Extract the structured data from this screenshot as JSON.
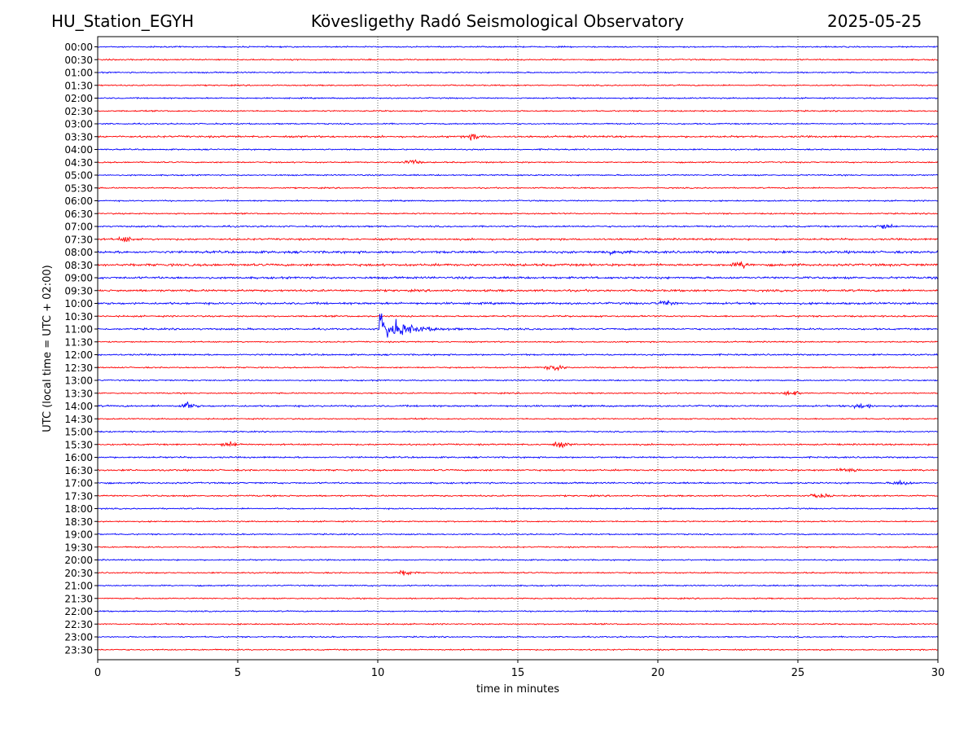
{
  "header": {
    "station": "HU_Station_EGYH",
    "observatory": "Kövesligethy Radó Seismological Observatory",
    "date": "2025-05-25"
  },
  "chart_data": {
    "type": "line",
    "title": "Kövesligethy Radó Seismological Observatory",
    "xlabel": "time in minutes",
    "ylabel": "UTC (local time = UTC + 02:00)",
    "xlim": [
      0,
      30
    ],
    "xticks": [
      0,
      5,
      10,
      15,
      20,
      25,
      30
    ],
    "grid": "vertical dotted lines at x ticks",
    "row_labels": [
      "00:00",
      "00:30",
      "01:00",
      "01:30",
      "02:00",
      "02:30",
      "03:00",
      "03:30",
      "04:00",
      "04:30",
      "05:00",
      "05:30",
      "06:00",
      "06:30",
      "07:00",
      "07:30",
      "08:00",
      "08:30",
      "09:00",
      "09:30",
      "10:00",
      "10:30",
      "11:00",
      "11:30",
      "12:00",
      "12:30",
      "13:00",
      "13:30",
      "14:00",
      "14:30",
      "15:00",
      "15:30",
      "16:00",
      "16:30",
      "17:00",
      "17:30",
      "18:00",
      "18:30",
      "19:00",
      "19:30",
      "20:00",
      "20:30",
      "21:00",
      "21:30",
      "22:00",
      "22:30",
      "23:00",
      "23:30"
    ],
    "row_colors": [
      "#0000ff",
      "#ff0000"
    ],
    "base_noise": [
      1,
      1,
      1,
      1,
      1,
      1,
      1,
      1.4,
      1,
      1,
      1,
      1,
      1,
      1,
      1.2,
      1.4,
      1.8,
      1.8,
      1.6,
      1.6,
      1.6,
      1.2,
      1.3,
      1,
      1.2,
      1,
      1,
      1,
      1.3,
      1,
      1,
      1.2,
      1.2,
      1.3,
      1.2,
      1.2,
      1,
      1,
      1,
      1,
      1,
      1,
      1,
      1,
      1,
      1,
      1,
      1
    ],
    "events": [
      {
        "row": "03:30",
        "minute": 13.4,
        "amplitude": 2
      },
      {
        "row": "04:30",
        "minute": 11.2,
        "amplitude": 2
      },
      {
        "row": "07:00",
        "minute": 28.1,
        "amplitude": 2
      },
      {
        "row": "07:30",
        "minute": 1.0,
        "amplitude": 2
      },
      {
        "row": "08:00",
        "minute": 18.5,
        "amplitude": 2
      },
      {
        "row": "08:30",
        "minute": 23.0,
        "amplitude": 2
      },
      {
        "row": "10:00",
        "minute": 20.3,
        "amplitude": 2
      },
      {
        "row": "11:00",
        "minute": 10.1,
        "amplitude": 14
      },
      {
        "row": "12:30",
        "minute": 16.3,
        "amplitude": 3
      },
      {
        "row": "13:30",
        "minute": 24.8,
        "amplitude": 2
      },
      {
        "row": "14:00",
        "minute": 3.2,
        "amplitude": 2.5
      },
      {
        "row": "14:00",
        "minute": 27.3,
        "amplitude": 2.5
      },
      {
        "row": "15:30",
        "minute": 4.7,
        "amplitude": 2
      },
      {
        "row": "15:30",
        "minute": 16.5,
        "amplitude": 2
      },
      {
        "row": "16:30",
        "minute": 26.8,
        "amplitude": 2
      },
      {
        "row": "17:00",
        "minute": 28.7,
        "amplitude": 2
      },
      {
        "row": "17:30",
        "minute": 25.8,
        "amplitude": 2
      },
      {
        "row": "20:30",
        "minute": 11.0,
        "amplitude": 2
      }
    ]
  }
}
